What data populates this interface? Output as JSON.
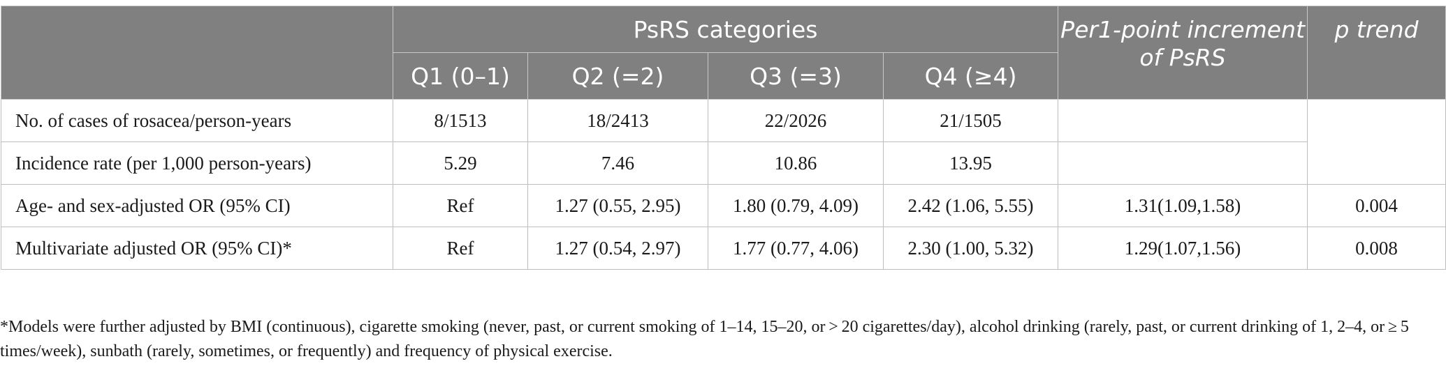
{
  "table": {
    "header": {
      "group_label": "PsRS categories",
      "increment_label": "Per1-point increment of PsRS",
      "trend_label": "p trend",
      "quartiles": [
        "Q1 (0–1)",
        "Q2 (=2)",
        "Q3 (=3)",
        "Q4 (≥4)"
      ]
    },
    "rows": [
      {
        "label": "No. of cases of rosacea/person-years",
        "cells": [
          "8/1513",
          "18/2413",
          "22/2026",
          "21/1505"
        ],
        "increment": "",
        "trend": ""
      },
      {
        "label": "Incidence rate (per 1,000 person-years)",
        "cells": [
          "5.29",
          "7.46",
          "10.86",
          "13.95"
        ],
        "increment": ""
      },
      {
        "label": "Age- and sex-adjusted OR (95% CI)",
        "cells": [
          "Ref",
          "1.27 (0.55, 2.95)",
          "1.80 (0.79, 4.09)",
          "2.42 (1.06, 5.55)"
        ],
        "increment": "1.31(1.09,1.58)",
        "trend": "0.004"
      },
      {
        "label": "Multivariate adjusted OR (95% CI)*",
        "cells": [
          "Ref",
          "1.27 (0.54, 2.97)",
          "1.77 (0.77, 4.06)",
          "2.30 (1.00, 5.32)"
        ],
        "increment": "1.29(1.07,1.56)",
        "trend": "0.008"
      }
    ]
  },
  "footnote": "*Models were further adjusted by BMI (continuous), cigarette smoking (never, past, or current smoking of 1–14, 15–20, or > 20 cigarettes/day), alcohol drinking (rarely, past, or current drinking of 1, 2–4, or ≥ 5 times/week), sunbath (rarely, sometimes, or frequently) and frequency of physical exercise.",
  "colors": {
    "header_bg": "#808080",
    "header_text": "#ffffff",
    "grid": "#bdbdbd",
    "body_text": "#1a1a1a"
  }
}
